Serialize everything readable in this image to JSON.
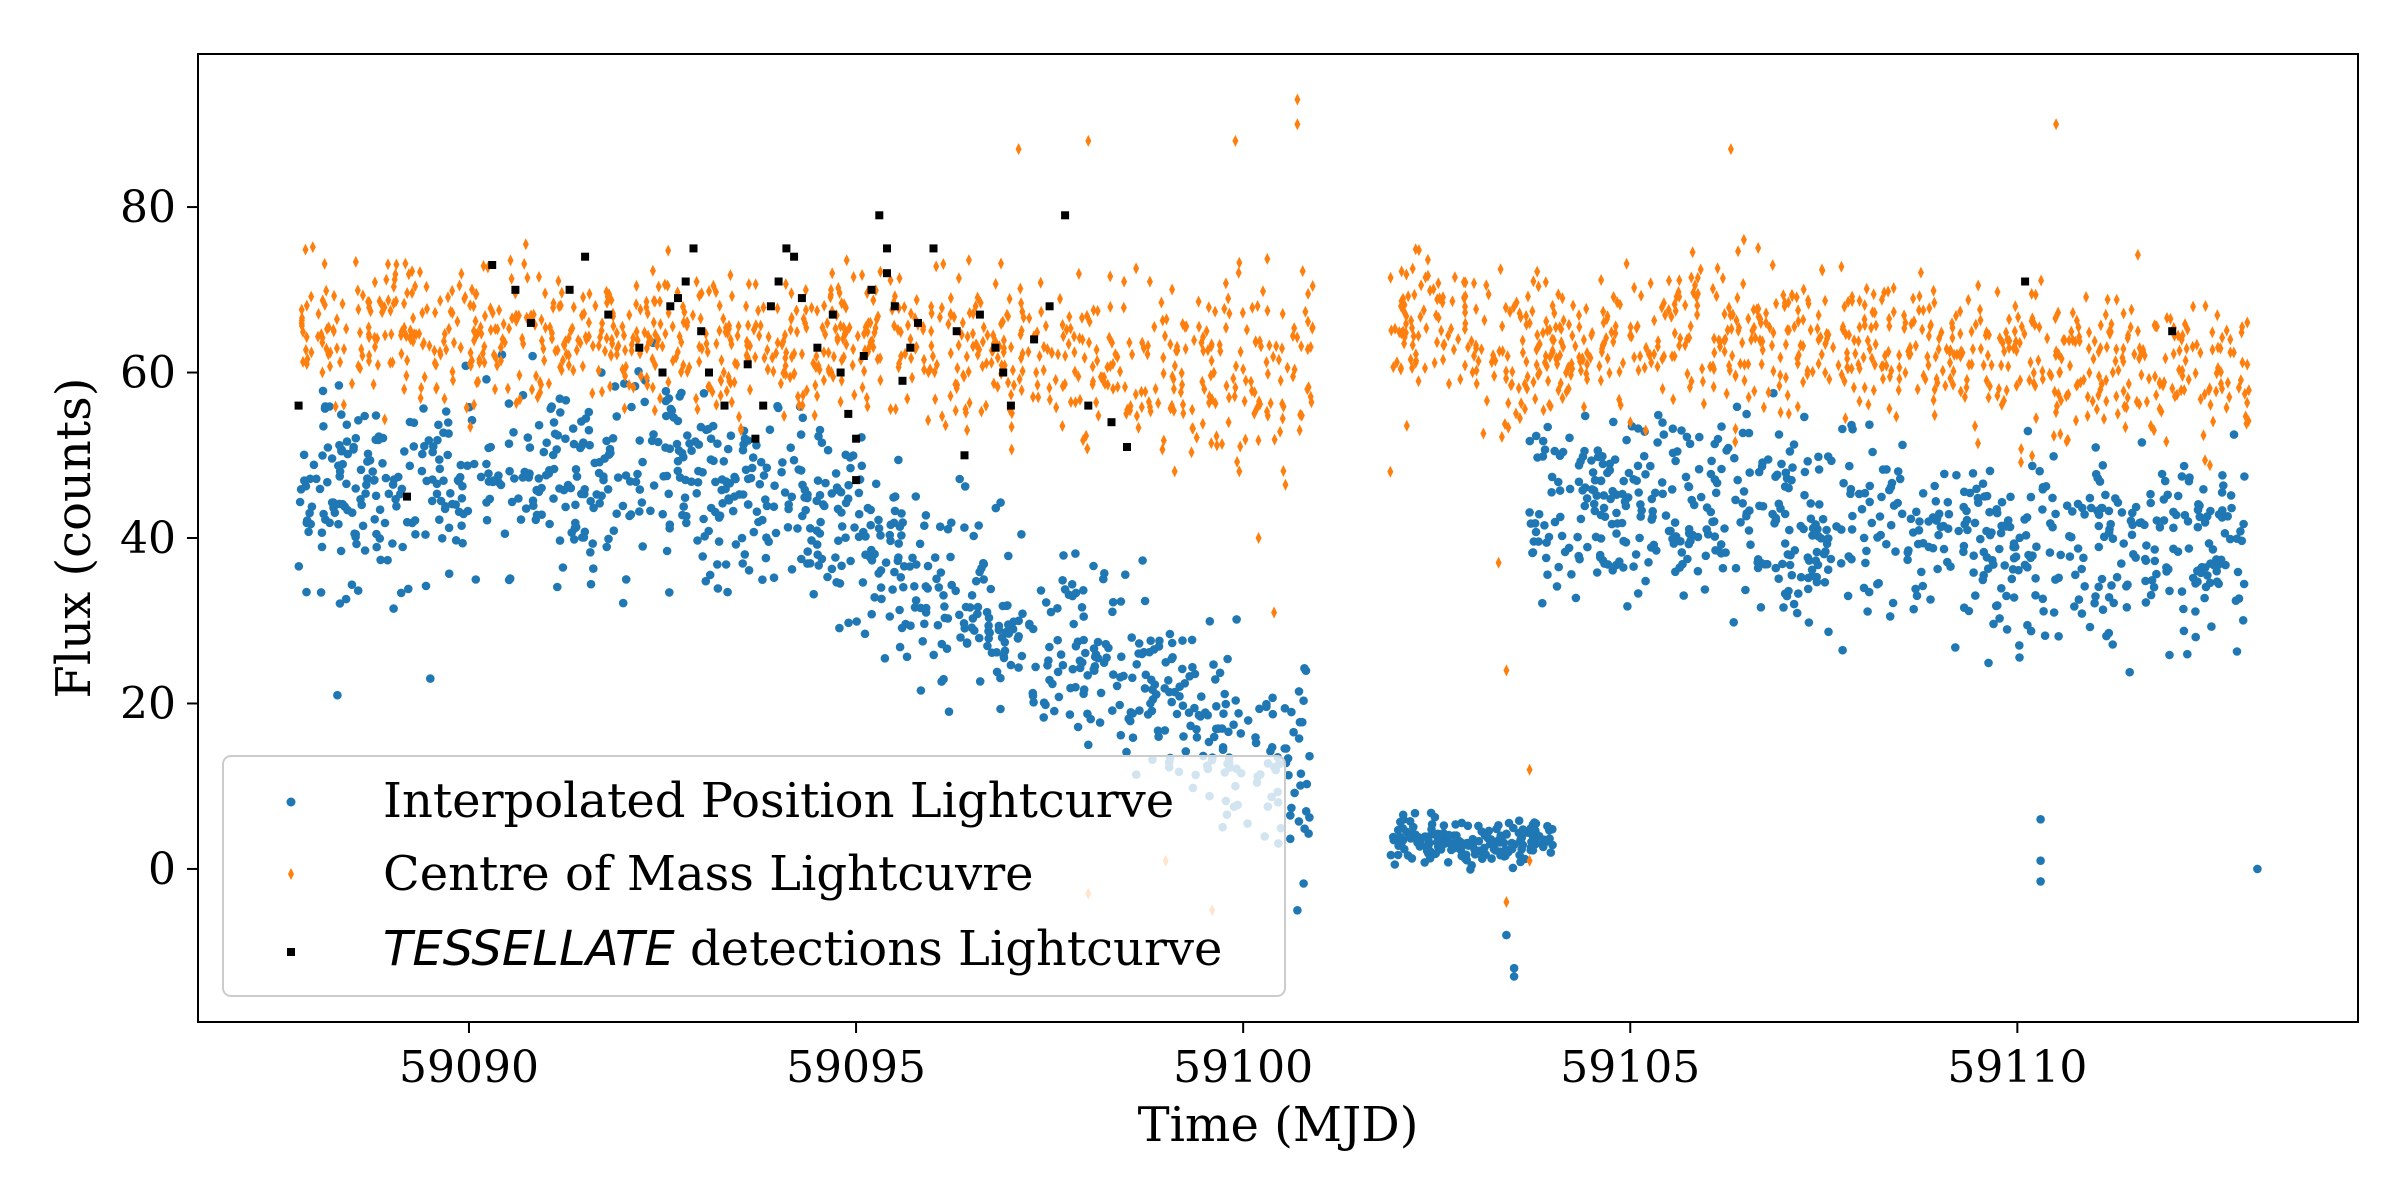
{
  "chart_data": {
    "type": "scatter",
    "title": "",
    "xlabel": "Time (MJD)",
    "ylabel": "Flux (counts)",
    "xlim": [
      59086.5,
      59114.4
    ],
    "ylim": [
      -18.5,
      98.5
    ],
    "xticks": [
      59090,
      59095,
      59100,
      59105,
      59110
    ],
    "xtick_labels": [
      "59090",
      "59095",
      "59100",
      "59105",
      "59110"
    ],
    "yticks": [
      0,
      20,
      40,
      60,
      80
    ],
    "ytick_labels": [
      "0",
      "20",
      "40",
      "60",
      "80"
    ],
    "grid": false,
    "legend_position": "lower-left",
    "series": [
      {
        "name": "Interpolated Position Lightcurve",
        "color": "#1f77b4",
        "marker": "circle",
        "segments": [
          {
            "x": [
              59087.8,
              59090.0,
              59092.5,
              59094.2,
              59095.6,
              59097.6,
              59099.5,
              59100.9
            ],
            "center": [
              45,
              46,
              48,
              45,
              36,
              28,
              18,
              12
            ],
            "spread": [
              16,
              16,
              15,
              15,
              17,
              15,
              14,
              14
            ]
          },
          {
            "x": [
              59101.9,
              59102.8,
              59103.5,
              59104.0
            ],
            "center": [
              4,
              3,
              3,
              4
            ],
            "spread": [
              4,
              3,
              4,
              3
            ]
          },
          {
            "x": [
              59103.7,
              59106.0,
              59108.5,
              59111.0,
              59113.0
            ],
            "center": [
              45,
              43,
              40,
              38,
              40
            ],
            "spread": [
              14,
              15,
              15,
              15,
              14
            ]
          }
        ],
        "outliers": [
          [
            59103.5,
            -13
          ],
          [
            59103.5,
            -12
          ],
          [
            59103.4,
            -8
          ],
          [
            59100.7,
            -5
          ],
          [
            59110.3,
            -1.5
          ],
          [
            59110.3,
            1
          ],
          [
            59113.1,
            0
          ],
          [
            59088.3,
            21
          ],
          [
            59089.5,
            23
          ],
          [
            59096.2,
            19
          ],
          [
            59098.0,
            15
          ],
          [
            59099.9,
            10
          ],
          [
            59110.3,
            6
          ]
        ]
      },
      {
        "name": "Centre of Mass Lightcuvre",
        "color": "#ff7f0e",
        "marker": "diamond",
        "segments": [
          {
            "x": [
              59087.8,
              59090.0,
              59092.5,
              59095.0,
              59097.5,
              59099.5,
              59100.9
            ],
            "center": [
              66,
              64,
              64,
              64,
              62,
              60,
              60
            ],
            "spread": [
              11,
              11,
              11,
              11,
              12,
              14,
              16
            ]
          },
          {
            "x": [
              59101.9,
              59102.8,
              59103.5,
              59104.0,
              59106.0,
              59108.5,
              59111.0,
              59113.0
            ],
            "center": [
              64,
              66,
              60,
              63,
              64,
              63,
              61,
              60
            ],
            "spread": [
              12,
              11,
              15,
              11,
              12,
              11,
              12,
              13
            ]
          }
        ],
        "outliers": [
          [
            59100.7,
            93
          ],
          [
            59100.7,
            90
          ],
          [
            59099.9,
            88
          ],
          [
            59097.1,
            87
          ],
          [
            59110.5,
            90
          ],
          [
            59106.3,
            87
          ],
          [
            59098.0,
            88
          ],
          [
            59103.4,
            24
          ],
          [
            59103.7,
            12
          ],
          [
            59103.7,
            1
          ],
          [
            59103.4,
            -4
          ],
          [
            59099.6,
            -5
          ],
          [
            59098.0,
            -3
          ],
          [
            59099.0,
            1
          ],
          [
            59100.4,
            31
          ],
          [
            59100.2,
            40
          ],
          [
            59101.9,
            48
          ],
          [
            59103.3,
            37
          ]
        ]
      },
      {
        "name": "TESSELLATE detections Lightcurve",
        "name_italic_part": "TESSELLATE",
        "name_rest": " detections Lightcurve",
        "color": "#000000",
        "marker": "square",
        "points": [
          [
            59087.8,
            56
          ],
          [
            59089.2,
            45
          ],
          [
            59090.3,
            73
          ],
          [
            59090.6,
            70
          ],
          [
            59090.8,
            66
          ],
          [
            59091.3,
            70
          ],
          [
            59091.5,
            74
          ],
          [
            59091.8,
            67
          ],
          [
            59092.2,
            63
          ],
          [
            59092.5,
            60
          ],
          [
            59092.6,
            68
          ],
          [
            59092.7,
            69
          ],
          [
            59092.8,
            71
          ],
          [
            59092.9,
            75
          ],
          [
            59093.0,
            65
          ],
          [
            59093.1,
            60
          ],
          [
            59093.3,
            56
          ],
          [
            59093.6,
            61
          ],
          [
            59093.7,
            52
          ],
          [
            59093.8,
            56
          ],
          [
            59093.9,
            68
          ],
          [
            59094.0,
            71
          ],
          [
            59094.1,
            75
          ],
          [
            59094.2,
            74
          ],
          [
            59094.3,
            69
          ],
          [
            59094.5,
            63
          ],
          [
            59094.7,
            67
          ],
          [
            59094.8,
            60
          ],
          [
            59094.9,
            55
          ],
          [
            59095.0,
            52
          ],
          [
            59095.0,
            47
          ],
          [
            59095.1,
            62
          ],
          [
            59095.2,
            70
          ],
          [
            59095.3,
            79
          ],
          [
            59095.4,
            75
          ],
          [
            59095.4,
            72
          ],
          [
            59095.5,
            68
          ],
          [
            59095.6,
            59
          ],
          [
            59095.7,
            63
          ],
          [
            59095.8,
            66
          ],
          [
            59096.0,
            75
          ],
          [
            59096.3,
            65
          ],
          [
            59096.4,
            50
          ],
          [
            59096.6,
            67
          ],
          [
            59096.8,
            63
          ],
          [
            59096.9,
            60
          ],
          [
            59097.0,
            56
          ],
          [
            59097.3,
            64
          ],
          [
            59097.5,
            68
          ],
          [
            59097.7,
            79
          ],
          [
            59098.0,
            56
          ],
          [
            59098.3,
            54
          ],
          [
            59098.5,
            51
          ],
          [
            59110.1,
            71
          ],
          [
            59112.0,
            65
          ]
        ]
      }
    ]
  },
  "legend": {
    "entries": [
      {
        "label": "Interpolated Position Lightcurve"
      },
      {
        "label": "Centre of Mass Lightcuvre"
      },
      {
        "label_italic": "TESSELLATE",
        "label_rest": " detections Lightcurve"
      }
    ]
  }
}
